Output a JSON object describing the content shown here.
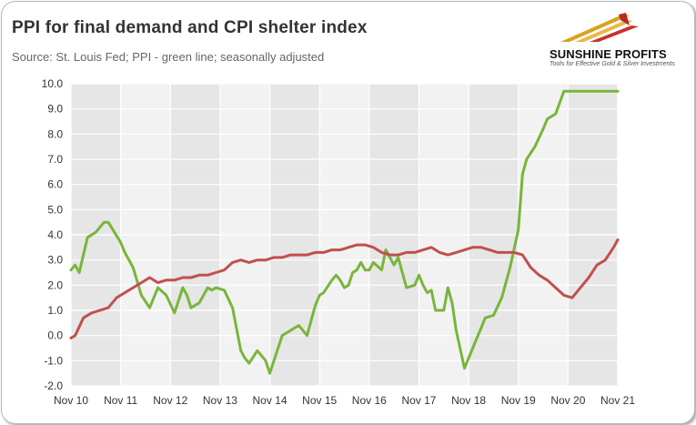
{
  "title": "PPI for final demand and CPI shelter index",
  "subtitle": "Source: St. Louis Fed; PPI - green line; seasonally adjusted",
  "logo": {
    "name": "SUNSHINE PROFITS",
    "tagline": "Tools for Effective Gold & Silver Investments",
    "icon": "sunshine-profits-logo-icon"
  },
  "colors": {
    "ppi": "#79b53a",
    "cpi_shelter": "#c0504d",
    "plot_bg": "#f2f2f2",
    "grid": "#ffffff",
    "alt_band": "#e6e6e6"
  },
  "chart_data": {
    "type": "line",
    "title": "PPI for final demand and CPI shelter index",
    "subtitle": "Source: St. Louis Fed; PPI - green line; seasonally adjusted",
    "xlabel": "",
    "ylabel": "",
    "ylim": [
      -2.0,
      10.0
    ],
    "y_ticks": [
      "10.0",
      "9.0",
      "8.0",
      "7.0",
      "6.0",
      "5.0",
      "4.0",
      "3.0",
      "2.0",
      "1.0",
      "0.0",
      "-1.0",
      "-2.0"
    ],
    "x_ticks": [
      "Nov 10",
      "Nov 11",
      "Nov 12",
      "Nov 13",
      "Nov 14",
      "Nov 15",
      "Nov 16",
      "Nov 17",
      "Nov 18",
      "Nov 19",
      "Nov 20",
      "Nov 21"
    ],
    "x_range": [
      "Nov 10",
      "Nov 21"
    ],
    "grid": true,
    "legend": "none",
    "series": [
      {
        "key": "ppi",
        "x": [
          "Nov 10",
          "Dec 10",
          "Jan 11",
          "Mar 11",
          "May 11",
          "Jul 11",
          "Aug 11",
          "Nov 11",
          "Dec 11",
          "Feb 12",
          "Apr 12",
          "Jun 12",
          "Aug 12",
          "Oct 12",
          "Dec 12",
          "Feb 13",
          "Mar 13",
          "Apr 13",
          "Jun 13",
          "Aug 13",
          "Sep 13",
          "Oct 13",
          "Dec 13",
          "Feb 14",
          "Apr 14",
          "May 14",
          "Jun 14",
          "Aug 14",
          "Oct 14",
          "Nov 14",
          "Dec 14",
          "Feb 15",
          "Apr 15",
          "Jun 15",
          "Aug 15",
          "Oct 15",
          "Nov 15",
          "Dec 15",
          "Feb 16",
          "Mar 16",
          "Apr 16",
          "May 16",
          "Jun 16",
          "Jul 16",
          "Aug 16",
          "Sep 16",
          "Oct 16",
          "Nov 16",
          "Dec 16",
          "Feb 17",
          "Mar 17",
          "May 17",
          "Jun 17",
          "Jul 17",
          "Aug 17",
          "Oct 17",
          "Nov 17",
          "Dec 17",
          "Jan 18",
          "Feb 18",
          "Mar 18",
          "May 18",
          "Jun 18",
          "Jul 18",
          "Aug 18",
          "Oct 18",
          "Nov 18",
          "Dec 18",
          "Feb 19",
          "Mar 19",
          "May 19",
          "Jul 19",
          "Sep 19",
          "Nov 19",
          "Dec 19",
          "Jan 20",
          "Mar 20",
          "May 20",
          "Jun 20",
          "Aug 20",
          "Oct 20",
          "Nov 20",
          "Dec 20",
          "Feb 21",
          "Mar 21",
          "Apr 21",
          "Jun 21",
          "Aug 21",
          "Oct 21",
          "Nov 21"
        ],
        "y": [
          2.6,
          2.8,
          2.5,
          3.9,
          4.1,
          4.5,
          4.5,
          3.7,
          3.3,
          2.7,
          1.6,
          1.1,
          1.9,
          1.6,
          0.9,
          1.9,
          1.6,
          1.1,
          1.3,
          1.9,
          1.8,
          1.9,
          1.8,
          1.1,
          -0.6,
          -0.9,
          -1.1,
          -0.6,
          -1.0,
          -1.5,
          -1.0,
          0.0,
          0.2,
          0.4,
          0.0,
          1.2,
          1.6,
          1.7,
          2.2,
          2.4,
          2.2,
          1.9,
          2.0,
          2.5,
          2.6,
          2.9,
          2.6,
          2.6,
          2.9,
          2.6,
          3.4,
          2.8,
          3.1,
          2.5,
          1.9,
          2.0,
          2.4,
          2.0,
          1.7,
          1.8,
          1.0,
          1.0,
          1.9,
          1.3,
          0.2,
          -1.3,
          -0.9,
          -0.5,
          0.3,
          0.7,
          0.8,
          1.5,
          2.7,
          4.2,
          6.4,
          7.0,
          7.5,
          8.2,
          8.6,
          8.8,
          9.7,
          9.7,
          9.7,
          9.7,
          9.7,
          9.7,
          9.7,
          9.7,
          9.7,
          9.7
        ]
      },
      {
        "key": "cpi_shelter",
        "x": [
          "Nov 10",
          "Dec 10",
          "Feb 11",
          "Apr 11",
          "Jun 11",
          "Aug 11",
          "Oct 11",
          "Dec 11",
          "Feb 12",
          "Apr 12",
          "Jun 12",
          "Aug 12",
          "Oct 12",
          "Dec 12",
          "Feb 13",
          "Apr 13",
          "Jun 13",
          "Aug 13",
          "Oct 13",
          "Dec 13",
          "Feb 14",
          "Apr 14",
          "Jun 14",
          "Aug 14",
          "Oct 14",
          "Dec 14",
          "Feb 15",
          "Apr 15",
          "Jun 15",
          "Aug 15",
          "Oct 15",
          "Dec 15",
          "Feb 16",
          "Apr 16",
          "Jun 16",
          "Aug 16",
          "Oct 16",
          "Dec 16",
          "Feb 17",
          "Apr 17",
          "Jun 17",
          "Aug 17",
          "Oct 17",
          "Dec 17",
          "Feb 18",
          "Apr 18",
          "Jun 18",
          "Aug 18",
          "Oct 18",
          "Dec 18",
          "Feb 19",
          "Apr 19",
          "Jun 19",
          "Aug 19",
          "Oct 19",
          "Dec 19",
          "Feb 20",
          "Apr 20",
          "Jun 20",
          "Aug 20",
          "Oct 20",
          "Dec 20",
          "Feb 21",
          "Apr 21",
          "Jun 21",
          "Aug 21",
          "Oct 21",
          "Nov 21"
        ],
        "y": [
          -0.1,
          0.0,
          0.7,
          0.9,
          1.0,
          1.1,
          1.5,
          1.7,
          1.9,
          2.1,
          2.3,
          2.1,
          2.2,
          2.2,
          2.3,
          2.3,
          2.4,
          2.4,
          2.5,
          2.6,
          2.9,
          3.0,
          2.9,
          3.0,
          3.0,
          3.1,
          3.1,
          3.2,
          3.2,
          3.2,
          3.3,
          3.3,
          3.4,
          3.4,
          3.5,
          3.6,
          3.6,
          3.5,
          3.3,
          3.2,
          3.2,
          3.3,
          3.3,
          3.4,
          3.5,
          3.3,
          3.2,
          3.3,
          3.4,
          3.5,
          3.5,
          3.4,
          3.3,
          3.3,
          3.3,
          3.2,
          2.7,
          2.4,
          2.2,
          1.9,
          1.6,
          1.5,
          1.9,
          2.3,
          2.8,
          3.0,
          3.5,
          3.8
        ]
      }
    ]
  }
}
